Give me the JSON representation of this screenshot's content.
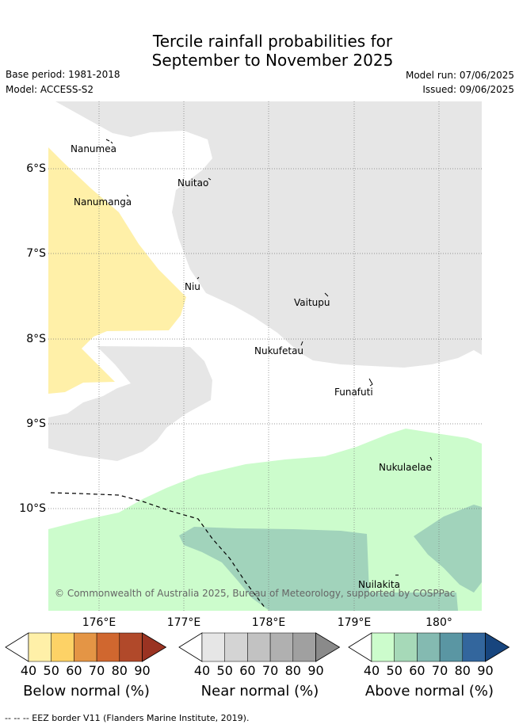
{
  "title_line1": "Tercile rainfall probabilities for",
  "title_line2": "September to November 2025",
  "base_period": "Base period: 1981-2018",
  "model": "Model: ACCESS-S2",
  "model_run": "Model run: 07/06/2025",
  "issued": "Issued: 09/06/2025",
  "copyright": "© Commonwealth of Australia 2025, Bureau of Meteorology, supported by COSPPac",
  "places": [
    {
      "name": "Nanumea"
    },
    {
      "name": "Nuitao"
    },
    {
      "name": "Nanumanga"
    },
    {
      "name": "Niu"
    },
    {
      "name": "Vaitupu"
    },
    {
      "name": "Nukufetau"
    },
    {
      "name": "Funafuti"
    },
    {
      "name": "Nukulaelae"
    },
    {
      "name": "Nuilakita"
    }
  ],
  "x_ticks": [
    "176°E",
    "177°E",
    "178°E",
    "179°E",
    "180°"
  ],
  "y_ticks": [
    "6°S",
    "7°S",
    "8°S",
    "9°S",
    "10°S"
  ],
  "colorbars": [
    {
      "label": "Below normal (%)",
      "ticks": [
        "40",
        "50",
        "60",
        "70",
        "80",
        "90"
      ],
      "colors": [
        "#ffffff",
        "#fff0a8",
        "#fdd266",
        "#e49545",
        "#d0672f",
        "#b1492a",
        "#9a3322"
      ]
    },
    {
      "label": "Near normal (%)",
      "ticks": [
        "40",
        "50",
        "60",
        "70",
        "80",
        "90"
      ],
      "colors": [
        "#ffffff",
        "#e6e6e6",
        "#d4d4d4",
        "#c2c2c2",
        "#b0b0b0",
        "#a0a0a0",
        "#8a8a8a"
      ]
    },
    {
      "label": "Above normal (%)",
      "ticks": [
        "40",
        "50",
        "60",
        "70",
        "80",
        "90"
      ],
      "colors": [
        "#ffffff",
        "#ccfccc",
        "#a6d9b8",
        "#84bab1",
        "#5a96a3",
        "#33669d",
        "#17457e"
      ]
    }
  ],
  "legend_note": "-- -- -- EEZ border V11 (Flanders Marine Institute, 2019)."
}
